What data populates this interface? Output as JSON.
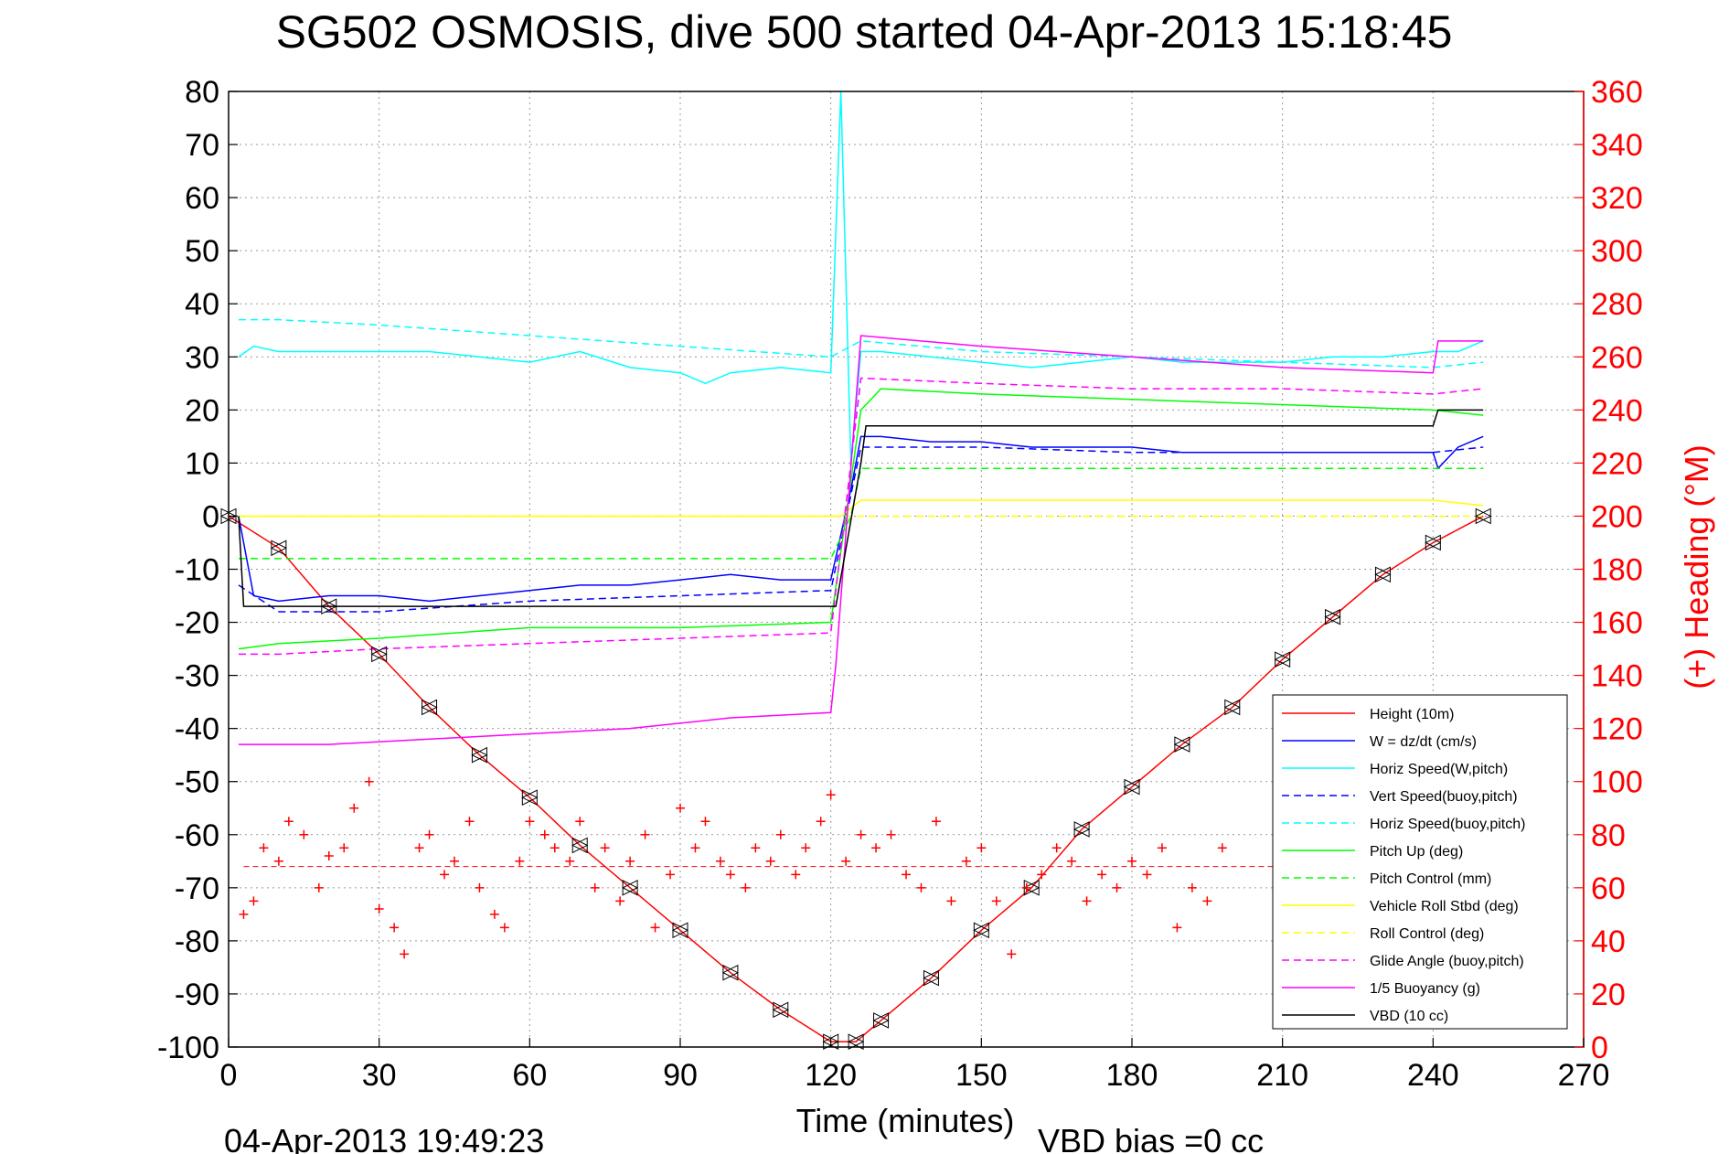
{
  "chart_data": {
    "type": "line",
    "title": "SG502 OSMOSIS, dive 500 started 04-Apr-2013 15:18:45",
    "xlabel": "Time (minutes)",
    "ylabel_right": "(+) Heading (°M)",
    "footer_left": "04-Apr-2013 19:49:23",
    "footer_right": "VBD bias =0 cc",
    "xlim": [
      0,
      270
    ],
    "ylim": [
      -100,
      80
    ],
    "ylim_right": [
      0,
      360
    ],
    "x_ticks": [
      "0",
      "30",
      "60",
      "90",
      "120",
      "150",
      "180",
      "210",
      "240",
      "270"
    ],
    "y_ticks": [
      "80",
      "70",
      "60",
      "50",
      "40",
      "30",
      "20",
      "10",
      "0",
      "-10",
      "-20",
      "-30",
      "-40",
      "-50",
      "-60",
      "-70",
      "-80",
      "-90",
      "-100"
    ],
    "y_ticks_right": [
      "360",
      "340",
      "320",
      "300",
      "280",
      "260",
      "240",
      "220",
      "200",
      "180",
      "160",
      "140",
      "120",
      "100",
      "80",
      "60",
      "40",
      "20",
      "0"
    ],
    "grid": true,
    "legend_position": "bottom-right",
    "series": [
      {
        "name": "Height (10m)",
        "color": "#ff0000",
        "style": "solid",
        "x": [
          0,
          10,
          20,
          30,
          40,
          50,
          60,
          70,
          80,
          90,
          100,
          110,
          120,
          125,
          130,
          140,
          150,
          160,
          170,
          180,
          190,
          200,
          210,
          220,
          230,
          240,
          250
        ],
        "y": [
          0,
          -6,
          -17,
          -26,
          -36,
          -45,
          -53,
          -62,
          -70,
          -78,
          -86,
          -93,
          -99,
          -99,
          -95,
          -87,
          -78,
          -70,
          -59,
          -51,
          -43,
          -36,
          -27,
          -19,
          -11,
          -5,
          0
        ]
      },
      {
        "name": "W = dz/dt (cm/s)",
        "color": "#0000ff",
        "style": "solid",
        "x": [
          2,
          5,
          10,
          20,
          30,
          40,
          50,
          60,
          70,
          80,
          90,
          100,
          110,
          120,
          124,
          126,
          130,
          140,
          150,
          160,
          170,
          180,
          190,
          200,
          210,
          220,
          230,
          240,
          241,
          245,
          250
        ],
        "y": [
          0,
          -15,
          -16,
          -15,
          -15,
          -16,
          -15,
          -14,
          -13,
          -13,
          -12,
          -11,
          -12,
          -12,
          5,
          15,
          15,
          14,
          14,
          13,
          13,
          13,
          12,
          12,
          12,
          12,
          12,
          12,
          9,
          13,
          15
        ]
      },
      {
        "name": "Horiz Speed(W,pitch)",
        "color": "#00ffff",
        "style": "solid",
        "x": [
          2,
          5,
          10,
          20,
          30,
          40,
          50,
          60,
          70,
          80,
          90,
          95,
          100,
          110,
          120,
          122,
          124,
          126,
          130,
          140,
          150,
          160,
          170,
          180,
          190,
          200,
          210,
          220,
          230,
          240,
          245,
          250
        ],
        "y": [
          30,
          32,
          31,
          31,
          31,
          31,
          30,
          29,
          31,
          28,
          27,
          25,
          27,
          28,
          27,
          80,
          10,
          31,
          31,
          30,
          29,
          28,
          29,
          30,
          29,
          29,
          29,
          30,
          30,
          31,
          31,
          33
        ]
      },
      {
        "name": "Vert Speed(buoy,pitch)",
        "color": "#0000ff",
        "style": "dashed",
        "x": [
          2,
          10,
          30,
          60,
          90,
          120,
          126,
          150,
          180,
          210,
          240,
          250
        ],
        "y": [
          -13,
          -18,
          -18,
          -16,
          -15,
          -14,
          13,
          13,
          12,
          12,
          12,
          13
        ]
      },
      {
        "name": "Horiz Speed(buoy,pitch)",
        "color": "#00ffff",
        "style": "dashed",
        "x": [
          2,
          10,
          30,
          60,
          90,
          120,
          126,
          150,
          180,
          210,
          240,
          250
        ],
        "y": [
          37,
          37,
          36,
          34,
          32,
          30,
          33,
          31,
          30,
          29,
          28,
          29
        ]
      },
      {
        "name": "Pitch Up (deg)",
        "color": "#00ff00",
        "style": "solid",
        "x": [
          2,
          10,
          30,
          60,
          90,
          120,
          126,
          130,
          150,
          180,
          210,
          240,
          250
        ],
        "y": [
          -25,
          -24,
          -23,
          -21,
          -21,
          -20,
          20,
          24,
          23,
          22,
          21,
          20,
          19
        ]
      },
      {
        "name": "Pitch Control (mm)",
        "color": "#00ff00",
        "style": "dashed",
        "x": [
          2,
          10,
          120,
          124,
          126,
          250
        ],
        "y": [
          -8,
          -8,
          -8,
          0,
          9,
          9
        ]
      },
      {
        "name": "Vehicle Roll Stbd (deg)",
        "color": "#ffff00",
        "style": "solid",
        "x": [
          2,
          20,
          40,
          60,
          80,
          100,
          122,
          126,
          150,
          180,
          210,
          240,
          250
        ],
        "y": [
          0,
          0,
          0,
          0,
          0,
          0,
          0,
          3,
          3,
          3,
          3,
          3,
          2
        ]
      },
      {
        "name": "Roll Control (deg)",
        "color": "#ffff00",
        "style": "dashed",
        "x": [
          2,
          120,
          126,
          250
        ],
        "y": [
          0,
          0,
          0,
          0
        ]
      },
      {
        "name": "Glide Angle (buoy,pitch)",
        "color": "#ff00ff",
        "style": "dashed",
        "x": [
          2,
          10,
          30,
          60,
          90,
          120,
          126,
          150,
          180,
          210,
          240,
          250
        ],
        "y": [
          -26,
          -26,
          -25,
          -24,
          -23,
          -22,
          26,
          25,
          24,
          24,
          23,
          24
        ]
      },
      {
        "name": "1/5 Buoyancy (g)",
        "color": "#ff00ff",
        "style": "solid",
        "x": [
          2,
          20,
          40,
          60,
          80,
          100,
          120,
          121,
          126,
          150,
          180,
          210,
          240,
          241,
          250
        ],
        "y": [
          -43,
          -43,
          -42,
          -41,
          -40,
          -38,
          -37,
          -28,
          34,
          32,
          30,
          28,
          27,
          33,
          33
        ]
      },
      {
        "name": "VBD (10 cc)",
        "color": "#000000",
        "style": "solid",
        "x": [
          2,
          3,
          120,
          121,
          126,
          127,
          240,
          241,
          250
        ],
        "y": [
          0,
          -17,
          -17,
          -17,
          10,
          17,
          17,
          20,
          20
        ]
      }
    ],
    "heading_series": {
      "name": "Heading",
      "color": "#ff0000",
      "marker": "+",
      "x": [
        3,
        5,
        7,
        10,
        12,
        15,
        18,
        20,
        23,
        25,
        28,
        30,
        33,
        35,
        38,
        40,
        43,
        45,
        48,
        50,
        53,
        55,
        58,
        60,
        63,
        65,
        68,
        70,
        73,
        75,
        78,
        80,
        83,
        85,
        88,
        90,
        93,
        95,
        98,
        100,
        103,
        105,
        108,
        110,
        113,
        115,
        118,
        120,
        123,
        126,
        129,
        132,
        135,
        138,
        141,
        144,
        147,
        150,
        153,
        156,
        159,
        162,
        165,
        168,
        171,
        174,
        177,
        180,
        183,
        186,
        189,
        192,
        195,
        198
      ],
      "y": [
        50,
        55,
        75,
        70,
        85,
        80,
        60,
        72,
        75,
        90,
        100,
        52,
        45,
        35,
        75,
        80,
        65,
        70,
        85,
        60,
        50,
        45,
        70,
        85,
        80,
        75,
        70,
        85,
        60,
        75,
        55,
        70,
        80,
        45,
        65,
        90,
        75,
        85,
        70,
        65,
        60,
        75,
        70,
        80,
        65,
        75,
        85,
        95,
        70,
        80,
        75,
        80,
        65,
        60,
        85,
        55,
        70,
        75,
        55,
        35,
        60,
        65,
        75,
        70,
        55,
        65,
        60,
        70,
        65,
        75,
        45,
        60,
        55,
        75
      ]
    },
    "mean_heading": 68,
    "legend": [
      "Height (10m)",
      "W = dz/dt (cm/s)",
      "Horiz Speed(W,pitch)",
      "Vert Speed(buoy,pitch)",
      "Horiz Speed(buoy,pitch)",
      "Pitch Up (deg)",
      "Pitch Control (mm)",
      "Vehicle Roll Stbd (deg)",
      "Roll Control (deg)",
      "Glide Angle (buoy,pitch)",
      "1/5 Buoyancy (g)",
      "VBD (10 cc)"
    ]
  }
}
